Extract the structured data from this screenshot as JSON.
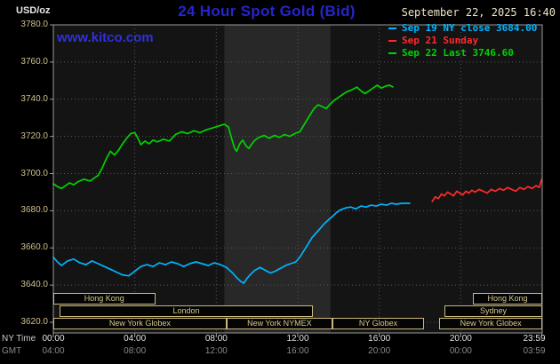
{
  "header": {
    "units_label": "USD/oz",
    "title": "24 Hour Spot Gold (Bid)",
    "datetime": "September 22, 2025 16:40",
    "watermark": "www.kitco.com",
    "legend": [
      {
        "label": "Sep 19 NY close 3684.00",
        "color": "#00b4ff"
      },
      {
        "label": "Sep 21 Sunday",
        "color": "#ff2a2a"
      },
      {
        "label": "Sep 22 Last 3746.60",
        "color": "#00d200"
      }
    ]
  },
  "axes": {
    "ny_label": "NY Time",
    "gmt_label": "GMT",
    "y_ticks": [
      {
        "value": 3780,
        "label": "3780.0"
      },
      {
        "value": 3760,
        "label": "3760.0"
      },
      {
        "value": 3740,
        "label": "3740.0"
      },
      {
        "value": 3720,
        "label": "3720.0"
      },
      {
        "value": 3700,
        "label": "3700.0"
      },
      {
        "value": 3680,
        "label": "3680.0"
      },
      {
        "value": 3660,
        "label": "3660.0"
      },
      {
        "value": 3640,
        "label": "3640.0"
      },
      {
        "value": 3620,
        "label": "3620.0"
      }
    ],
    "x_ticks": [
      {
        "hour": 0,
        "ny": "00:00",
        "gmt": "04:00"
      },
      {
        "hour": 4,
        "ny": "04:00",
        "gmt": "08:00"
      },
      {
        "hour": 8,
        "ny": "08:00",
        "gmt": "12:00"
      },
      {
        "hour": 12,
        "ny": "12:00",
        "gmt": "16:00"
      },
      {
        "hour": 16,
        "ny": "16:00",
        "gmt": "20:00"
      },
      {
        "hour": 20,
        "ny": "20:00",
        "gmt": "00:00"
      },
      {
        "hour": 23.983,
        "ny": "23:59",
        "gmt": "03:59"
      }
    ],
    "x_grid_hours": [
      4,
      8,
      12,
      16,
      20
    ]
  },
  "sessions": {
    "rows": [
      {
        "items": [
          {
            "label": "Hong Kong",
            "start": 0,
            "end": 5
          },
          {
            "label": "Hong Kong",
            "start": 20.6,
            "end": 24
          }
        ]
      },
      {
        "items": [
          {
            "label": "London",
            "start": 0.3,
            "end": 12.75
          },
          {
            "label": "Sydney",
            "start": 19.2,
            "end": 24
          }
        ]
      },
      {
        "items": [
          {
            "label": "New York Globex",
            "start": 0,
            "end": 8.5
          },
          {
            "label": "New York NYMEX",
            "start": 8.5,
            "end": 13.7
          },
          {
            "label": "NY Globex",
            "start": 13.7,
            "end": 18.2
          },
          {
            "label": "New York Globex",
            "start": 18.95,
            "end": 24
          }
        ]
      }
    ]
  },
  "colors": {
    "background": "#000000",
    "plot_background": "#141414",
    "nymex_band": "#282828",
    "grid": "#565656",
    "frame": "#9a9a9a",
    "title_blue": "#2525cd",
    "link_blue": "#3030dd",
    "date_tan": "#ede4c6",
    "axis_tan": "#cfc08a",
    "session_border": "#c9b97c",
    "series_green": "#00d200",
    "series_cyan": "#00b4ff",
    "series_red": "#ff2a2a"
  },
  "chart_data": {
    "type": "line",
    "title": "24 Hour Spot Gold (Bid)",
    "xlabel": "NY Time",
    "ylabel": "USD/oz",
    "ylim": [
      3620,
      3780
    ],
    "x_hours_range": [
      0,
      24
    ],
    "grid": true,
    "legend_position": "top-right",
    "nymex_band_hours": [
      8.4,
      13.6
    ],
    "series": [
      {
        "name": "Sep 19 NY close 3684.00",
        "color": "#00b4ff",
        "points": [
          [
            0,
            3655
          ],
          [
            0.2,
            3652.5
          ],
          [
            0.4,
            3650.5
          ],
          [
            0.7,
            3653
          ],
          [
            1,
            3654
          ],
          [
            1.3,
            3652
          ],
          [
            1.6,
            3651
          ],
          [
            1.9,
            3653
          ],
          [
            2.2,
            3651.5
          ],
          [
            2.5,
            3650
          ],
          [
            2.8,
            3648.5
          ],
          [
            3.1,
            3647
          ],
          [
            3.4,
            3645.5
          ],
          [
            3.7,
            3645
          ],
          [
            4,
            3647.5
          ],
          [
            4.3,
            3650
          ],
          [
            4.6,
            3651
          ],
          [
            4.9,
            3650
          ],
          [
            5.2,
            3652
          ],
          [
            5.5,
            3651
          ],
          [
            5.8,
            3652.5
          ],
          [
            6.1,
            3651.5
          ],
          [
            6.4,
            3650
          ],
          [
            6.7,
            3651.5
          ],
          [
            7,
            3652.5
          ],
          [
            7.3,
            3651.5
          ],
          [
            7.6,
            3650.5
          ],
          [
            7.9,
            3652
          ],
          [
            8.2,
            3651
          ],
          [
            8.5,
            3649.5
          ],
          [
            8.8,
            3646.5
          ],
          [
            9,
            3644
          ],
          [
            9.2,
            3642
          ],
          [
            9.35,
            3641
          ],
          [
            9.5,
            3643.5
          ],
          [
            9.7,
            3646
          ],
          [
            9.9,
            3648
          ],
          [
            10.15,
            3649.5
          ],
          [
            10.4,
            3648
          ],
          [
            10.65,
            3646.5
          ],
          [
            10.9,
            3647.5
          ],
          [
            11.15,
            3649
          ],
          [
            11.4,
            3650.5
          ],
          [
            11.65,
            3651.5
          ],
          [
            11.9,
            3652.5
          ],
          [
            12.1,
            3655
          ],
          [
            12.3,
            3658.5
          ],
          [
            12.5,
            3662
          ],
          [
            12.7,
            3665.5
          ],
          [
            12.9,
            3668
          ],
          [
            13.1,
            3670.5
          ],
          [
            13.3,
            3673
          ],
          [
            13.5,
            3675
          ],
          [
            13.7,
            3677
          ],
          [
            13.9,
            3679
          ],
          [
            14.1,
            3680.5
          ],
          [
            14.35,
            3681.5
          ],
          [
            14.6,
            3682
          ],
          [
            14.85,
            3681
          ],
          [
            15.1,
            3682.5
          ],
          [
            15.35,
            3682
          ],
          [
            15.6,
            3683
          ],
          [
            15.85,
            3682.5
          ],
          [
            16.1,
            3683.5
          ],
          [
            16.35,
            3683
          ],
          [
            16.6,
            3684
          ],
          [
            16.85,
            3683.5
          ],
          [
            17.1,
            3684
          ],
          [
            17.5,
            3684
          ]
        ]
      },
      {
        "name": "Sep 21 Sunday",
        "color": "#ff2a2a",
        "points": [
          [
            18.6,
            3685
          ],
          [
            18.75,
            3687.5
          ],
          [
            18.9,
            3686.5
          ],
          [
            19.05,
            3689
          ],
          [
            19.2,
            3688
          ],
          [
            19.35,
            3690
          ],
          [
            19.5,
            3689
          ],
          [
            19.65,
            3688
          ],
          [
            19.8,
            3690.5
          ],
          [
            19.95,
            3689.5
          ],
          [
            20.1,
            3688.5
          ],
          [
            20.25,
            3690.5
          ],
          [
            20.4,
            3689.5
          ],
          [
            20.55,
            3691
          ],
          [
            20.7,
            3690
          ],
          [
            20.9,
            3691.5
          ],
          [
            21.1,
            3690.5
          ],
          [
            21.3,
            3689.5
          ],
          [
            21.5,
            3691.5
          ],
          [
            21.7,
            3690.5
          ],
          [
            21.9,
            3692
          ],
          [
            22.1,
            3691
          ],
          [
            22.3,
            3692.5
          ],
          [
            22.5,
            3691.5
          ],
          [
            22.7,
            3690.5
          ],
          [
            22.9,
            3692.5
          ],
          [
            23.1,
            3691.5
          ],
          [
            23.3,
            3693
          ],
          [
            23.5,
            3692
          ],
          [
            23.7,
            3693.5
          ],
          [
            23.85,
            3692.5
          ],
          [
            23.98,
            3697
          ]
        ]
      },
      {
        "name": "Sep 22 Last 3746.60",
        "color": "#00d200",
        "points": [
          [
            0,
            3694.5
          ],
          [
            0.2,
            3693
          ],
          [
            0.4,
            3692
          ],
          [
            0.6,
            3693.5
          ],
          [
            0.8,
            3695
          ],
          [
            1,
            3694
          ],
          [
            1.2,
            3695.5
          ],
          [
            1.5,
            3697
          ],
          [
            1.8,
            3696
          ],
          [
            2,
            3697.5
          ],
          [
            2.2,
            3699
          ],
          [
            2.4,
            3703
          ],
          [
            2.6,
            3708
          ],
          [
            2.8,
            3712
          ],
          [
            3,
            3710
          ],
          [
            3.2,
            3712.5
          ],
          [
            3.4,
            3716
          ],
          [
            3.6,
            3719
          ],
          [
            3.8,
            3721.5
          ],
          [
            4,
            3722
          ],
          [
            4.15,
            3719
          ],
          [
            4.3,
            3715.5
          ],
          [
            4.5,
            3717.5
          ],
          [
            4.7,
            3716
          ],
          [
            4.9,
            3718
          ],
          [
            5.1,
            3717
          ],
          [
            5.4,
            3718.5
          ],
          [
            5.7,
            3717.5
          ],
          [
            6,
            3721
          ],
          [
            6.3,
            3722.5
          ],
          [
            6.6,
            3721.5
          ],
          [
            6.9,
            3723
          ],
          [
            7.2,
            3722
          ],
          [
            7.5,
            3723.5
          ],
          [
            7.8,
            3724.5
          ],
          [
            8.1,
            3725.5
          ],
          [
            8.4,
            3726.5
          ],
          [
            8.6,
            3725
          ],
          [
            8.75,
            3719
          ],
          [
            8.9,
            3713.5
          ],
          [
            9,
            3712
          ],
          [
            9.15,
            3716
          ],
          [
            9.3,
            3718
          ],
          [
            9.45,
            3715
          ],
          [
            9.6,
            3713.5
          ],
          [
            9.75,
            3716
          ],
          [
            9.9,
            3718
          ],
          [
            10.1,
            3719.5
          ],
          [
            10.35,
            3720.5
          ],
          [
            10.6,
            3719
          ],
          [
            10.85,
            3720.5
          ],
          [
            11.1,
            3719.5
          ],
          [
            11.35,
            3721
          ],
          [
            11.6,
            3720
          ],
          [
            11.85,
            3721.5
          ],
          [
            12.1,
            3722.5
          ],
          [
            12.35,
            3727
          ],
          [
            12.6,
            3731.5
          ],
          [
            12.8,
            3735
          ],
          [
            13,
            3737
          ],
          [
            13.2,
            3736
          ],
          [
            13.4,
            3735
          ],
          [
            13.6,
            3737.5
          ],
          [
            13.8,
            3739.5
          ],
          [
            14,
            3741
          ],
          [
            14.2,
            3742.5
          ],
          [
            14.4,
            3744
          ],
          [
            14.65,
            3745
          ],
          [
            14.9,
            3746.5
          ],
          [
            15.1,
            3744.5
          ],
          [
            15.3,
            3743
          ],
          [
            15.5,
            3744.5
          ],
          [
            15.7,
            3746
          ],
          [
            15.9,
            3747.5
          ],
          [
            16.1,
            3746
          ],
          [
            16.3,
            3747
          ],
          [
            16.5,
            3747.5
          ],
          [
            16.67,
            3746.6
          ]
        ]
      }
    ]
  }
}
